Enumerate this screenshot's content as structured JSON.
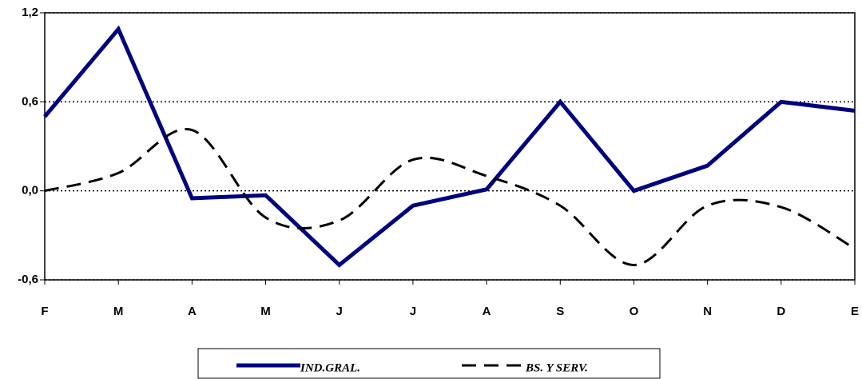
{
  "chart_data": {
    "type": "line",
    "categories": [
      "F",
      "M",
      "A",
      "M",
      "J",
      "J",
      "A",
      "S",
      "O",
      "N",
      "D",
      "E"
    ],
    "series": [
      {
        "name": "IND.GRAL.",
        "color": "#000080",
        "values": [
          0.5,
          1.09,
          -0.05,
          -0.03,
          -0.5,
          -0.1,
          0.01,
          0.6,
          0.0,
          0.17,
          0.6,
          0.54
        ]
      },
      {
        "name": "BS. Y SERV.",
        "color": "#000000",
        "smooth": true,
        "dashed": true,
        "values": [
          0.0,
          0.12,
          0.41,
          -0.18,
          -0.2,
          0.21,
          0.1,
          -0.1,
          -0.5,
          -0.1,
          -0.11,
          -0.39
        ]
      }
    ],
    "ylim": [
      -0.6,
      1.2
    ],
    "yticks": [
      {
        "value": -0.6,
        "label": "-0,6"
      },
      {
        "value": 0.0,
        "label": "0,0"
      },
      {
        "value": 0.6,
        "label": "0,6"
      },
      {
        "value": 1.2,
        "label": "1,2"
      }
    ],
    "grid": true
  }
}
